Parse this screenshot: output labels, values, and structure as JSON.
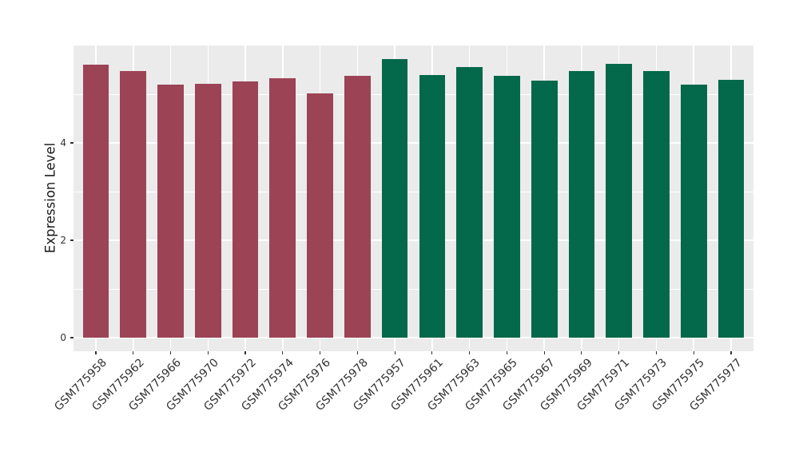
{
  "chart_data": {
    "type": "bar",
    "title": "",
    "xlabel": "",
    "ylabel": "Expression Level",
    "categories": [
      "GSM775958",
      "GSM775962",
      "GSM775966",
      "GSM775970",
      "GSM775972",
      "GSM775974",
      "GSM775976",
      "GSM775978",
      "GSM775957",
      "GSM775961",
      "GSM775963",
      "GSM775965",
      "GSM775967",
      "GSM775969",
      "GSM775971",
      "GSM775973",
      "GSM775975",
      "GSM775977"
    ],
    "values": [
      5.61,
      5.48,
      5.2,
      5.22,
      5.27,
      5.33,
      5.01,
      5.38,
      5.72,
      5.39,
      5.56,
      5.37,
      5.28,
      5.48,
      5.63,
      5.48,
      5.2,
      5.29
    ],
    "groups": [
      "red",
      "red",
      "red",
      "red",
      "red",
      "red",
      "red",
      "red",
      "green",
      "green",
      "green",
      "green",
      "green",
      "green",
      "green",
      "green",
      "green",
      "green"
    ],
    "group_colors": {
      "red": "#9c4355",
      "green": "#04684a"
    },
    "yticks": [
      0,
      2,
      4
    ],
    "ytick_labels": [
      "0",
      "2",
      "4"
    ],
    "yticks_minor": [
      1,
      3,
      5
    ],
    "ylim": [
      -0.28,
      6.0
    ],
    "x_tick_rotation_deg": 45,
    "legend": "none",
    "grid": "on",
    "panel_bg": "#ebebeb",
    "grid_color": "#ffffff",
    "axis_text_color": "#333333",
    "tick_mark_color": "#333333"
  }
}
